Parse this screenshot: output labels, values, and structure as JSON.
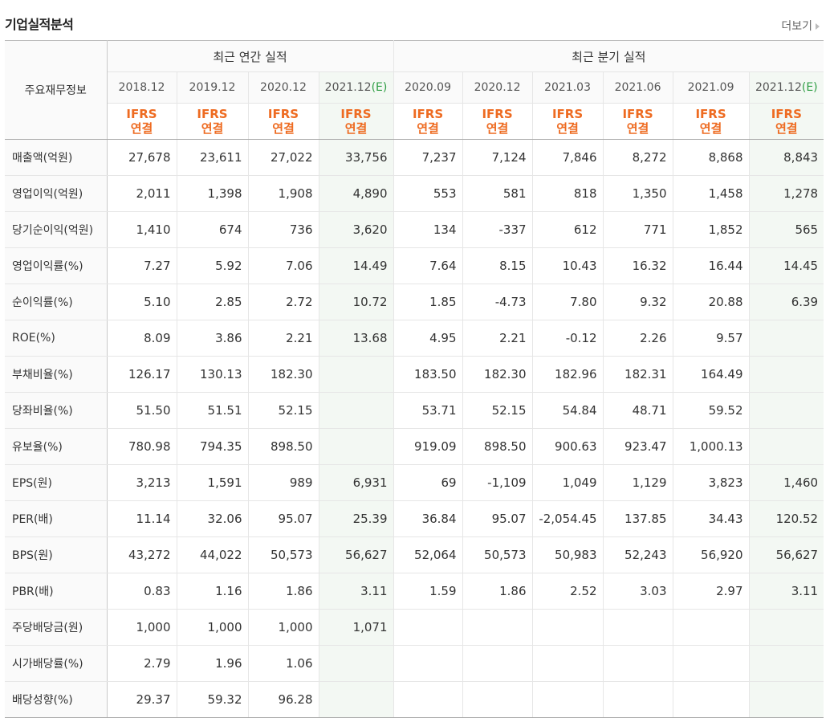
{
  "header": {
    "title": "기업실적분석",
    "more_label": "더보기"
  },
  "table": {
    "corner_label": "주요재무정보",
    "annual_group_label": "최근 연간 실적",
    "quarter_group_label": "최근 분기 실적",
    "ifrs_line1": "IFRS",
    "ifrs_line2": "연결",
    "estimate_mark": "(E)",
    "annual_periods": [
      "2018.12",
      "2019.12",
      "2020.12",
      "2021.12"
    ],
    "annual_estimate": [
      false,
      false,
      false,
      true
    ],
    "quarter_periods": [
      "2020.09",
      "2020.12",
      "2021.03",
      "2021.06",
      "2021.09",
      "2021.12"
    ],
    "quarter_estimate": [
      false,
      false,
      false,
      false,
      false,
      true
    ],
    "rows": [
      {
        "label": "매출액(억원)",
        "annual": [
          "27,678",
          "23,611",
          "27,022",
          "33,756"
        ],
        "quarter": [
          "7,237",
          "7,124",
          "7,846",
          "8,272",
          "8,868",
          "8,843"
        ]
      },
      {
        "label": "영업이익(억원)",
        "annual": [
          "2,011",
          "1,398",
          "1,908",
          "4,890"
        ],
        "quarter": [
          "553",
          "581",
          "818",
          "1,350",
          "1,458",
          "1,278"
        ]
      },
      {
        "label": "당기순이익(억원)",
        "annual": [
          "1,410",
          "674",
          "736",
          "3,620"
        ],
        "quarter": [
          "134",
          "-337",
          "612",
          "771",
          "1,852",
          "565"
        ]
      },
      {
        "label": "영업이익률(%)",
        "annual": [
          "7.27",
          "5.92",
          "7.06",
          "14.49"
        ],
        "quarter": [
          "7.64",
          "8.15",
          "10.43",
          "16.32",
          "16.44",
          "14.45"
        ]
      },
      {
        "label": "순이익률(%)",
        "annual": [
          "5.10",
          "2.85",
          "2.72",
          "10.72"
        ],
        "quarter": [
          "1.85",
          "-4.73",
          "7.80",
          "9.32",
          "20.88",
          "6.39"
        ]
      },
      {
        "label": "ROE(%)",
        "annual": [
          "8.09",
          "3.86",
          "2.21",
          "13.68"
        ],
        "quarter": [
          "4.95",
          "2.21",
          "-0.12",
          "2.26",
          "9.57",
          ""
        ]
      },
      {
        "label": "부채비율(%)",
        "annual": [
          "126.17",
          "130.13",
          "182.30",
          ""
        ],
        "quarter": [
          "183.50",
          "182.30",
          "182.96",
          "182.31",
          "164.49",
          ""
        ]
      },
      {
        "label": "당좌비율(%)",
        "annual": [
          "51.50",
          "51.51",
          "52.15",
          ""
        ],
        "quarter": [
          "53.71",
          "52.15",
          "54.84",
          "48.71",
          "59.52",
          ""
        ]
      },
      {
        "label": "유보율(%)",
        "annual": [
          "780.98",
          "794.35",
          "898.50",
          ""
        ],
        "quarter": [
          "919.09",
          "898.50",
          "900.63",
          "923.47",
          "1,000.13",
          ""
        ]
      },
      {
        "label": "EPS(원)",
        "annual": [
          "3,213",
          "1,591",
          "989",
          "6,931"
        ],
        "quarter": [
          "69",
          "-1,109",
          "1,049",
          "1,129",
          "3,823",
          "1,460"
        ]
      },
      {
        "label": "PER(배)",
        "annual": [
          "11.14",
          "32.06",
          "95.07",
          "25.39"
        ],
        "quarter": [
          "36.84",
          "95.07",
          "-2,054.45",
          "137.85",
          "34.43",
          "120.52"
        ]
      },
      {
        "label": "BPS(원)",
        "annual": [
          "43,272",
          "44,022",
          "50,573",
          "56,627"
        ],
        "quarter": [
          "52,064",
          "50,573",
          "50,983",
          "52,243",
          "56,920",
          "56,627"
        ]
      },
      {
        "label": "PBR(배)",
        "annual": [
          "0.83",
          "1.16",
          "1.86",
          "3.11"
        ],
        "quarter": [
          "1.59",
          "1.86",
          "2.52",
          "3.03",
          "2.97",
          "3.11"
        ]
      },
      {
        "label": "주당배당금(원)",
        "annual": [
          "1,000",
          "1,000",
          "1,000",
          "1,071"
        ],
        "quarter": [
          "",
          "",
          "",
          "",
          "",
          ""
        ]
      },
      {
        "label": "시가배당률(%)",
        "annual": [
          "2.79",
          "1.96",
          "1.06",
          ""
        ],
        "quarter": [
          "",
          "",
          "",
          "",
          "",
          ""
        ]
      },
      {
        "label": "배당성향(%)",
        "annual": [
          "29.37",
          "59.32",
          "96.28",
          ""
        ],
        "quarter": [
          "",
          "",
          "",
          "",
          "",
          ""
        ]
      }
    ],
    "group_break_before_rows": [
      3,
      9,
      13
    ]
  },
  "colors": {
    "ifrs_orange": "#ee6b21",
    "estimate_green": "#2f9e44",
    "negative_red": "#e03131",
    "estimate_bg": "#f3f8f3",
    "header_bg": "#fafafa"
  }
}
